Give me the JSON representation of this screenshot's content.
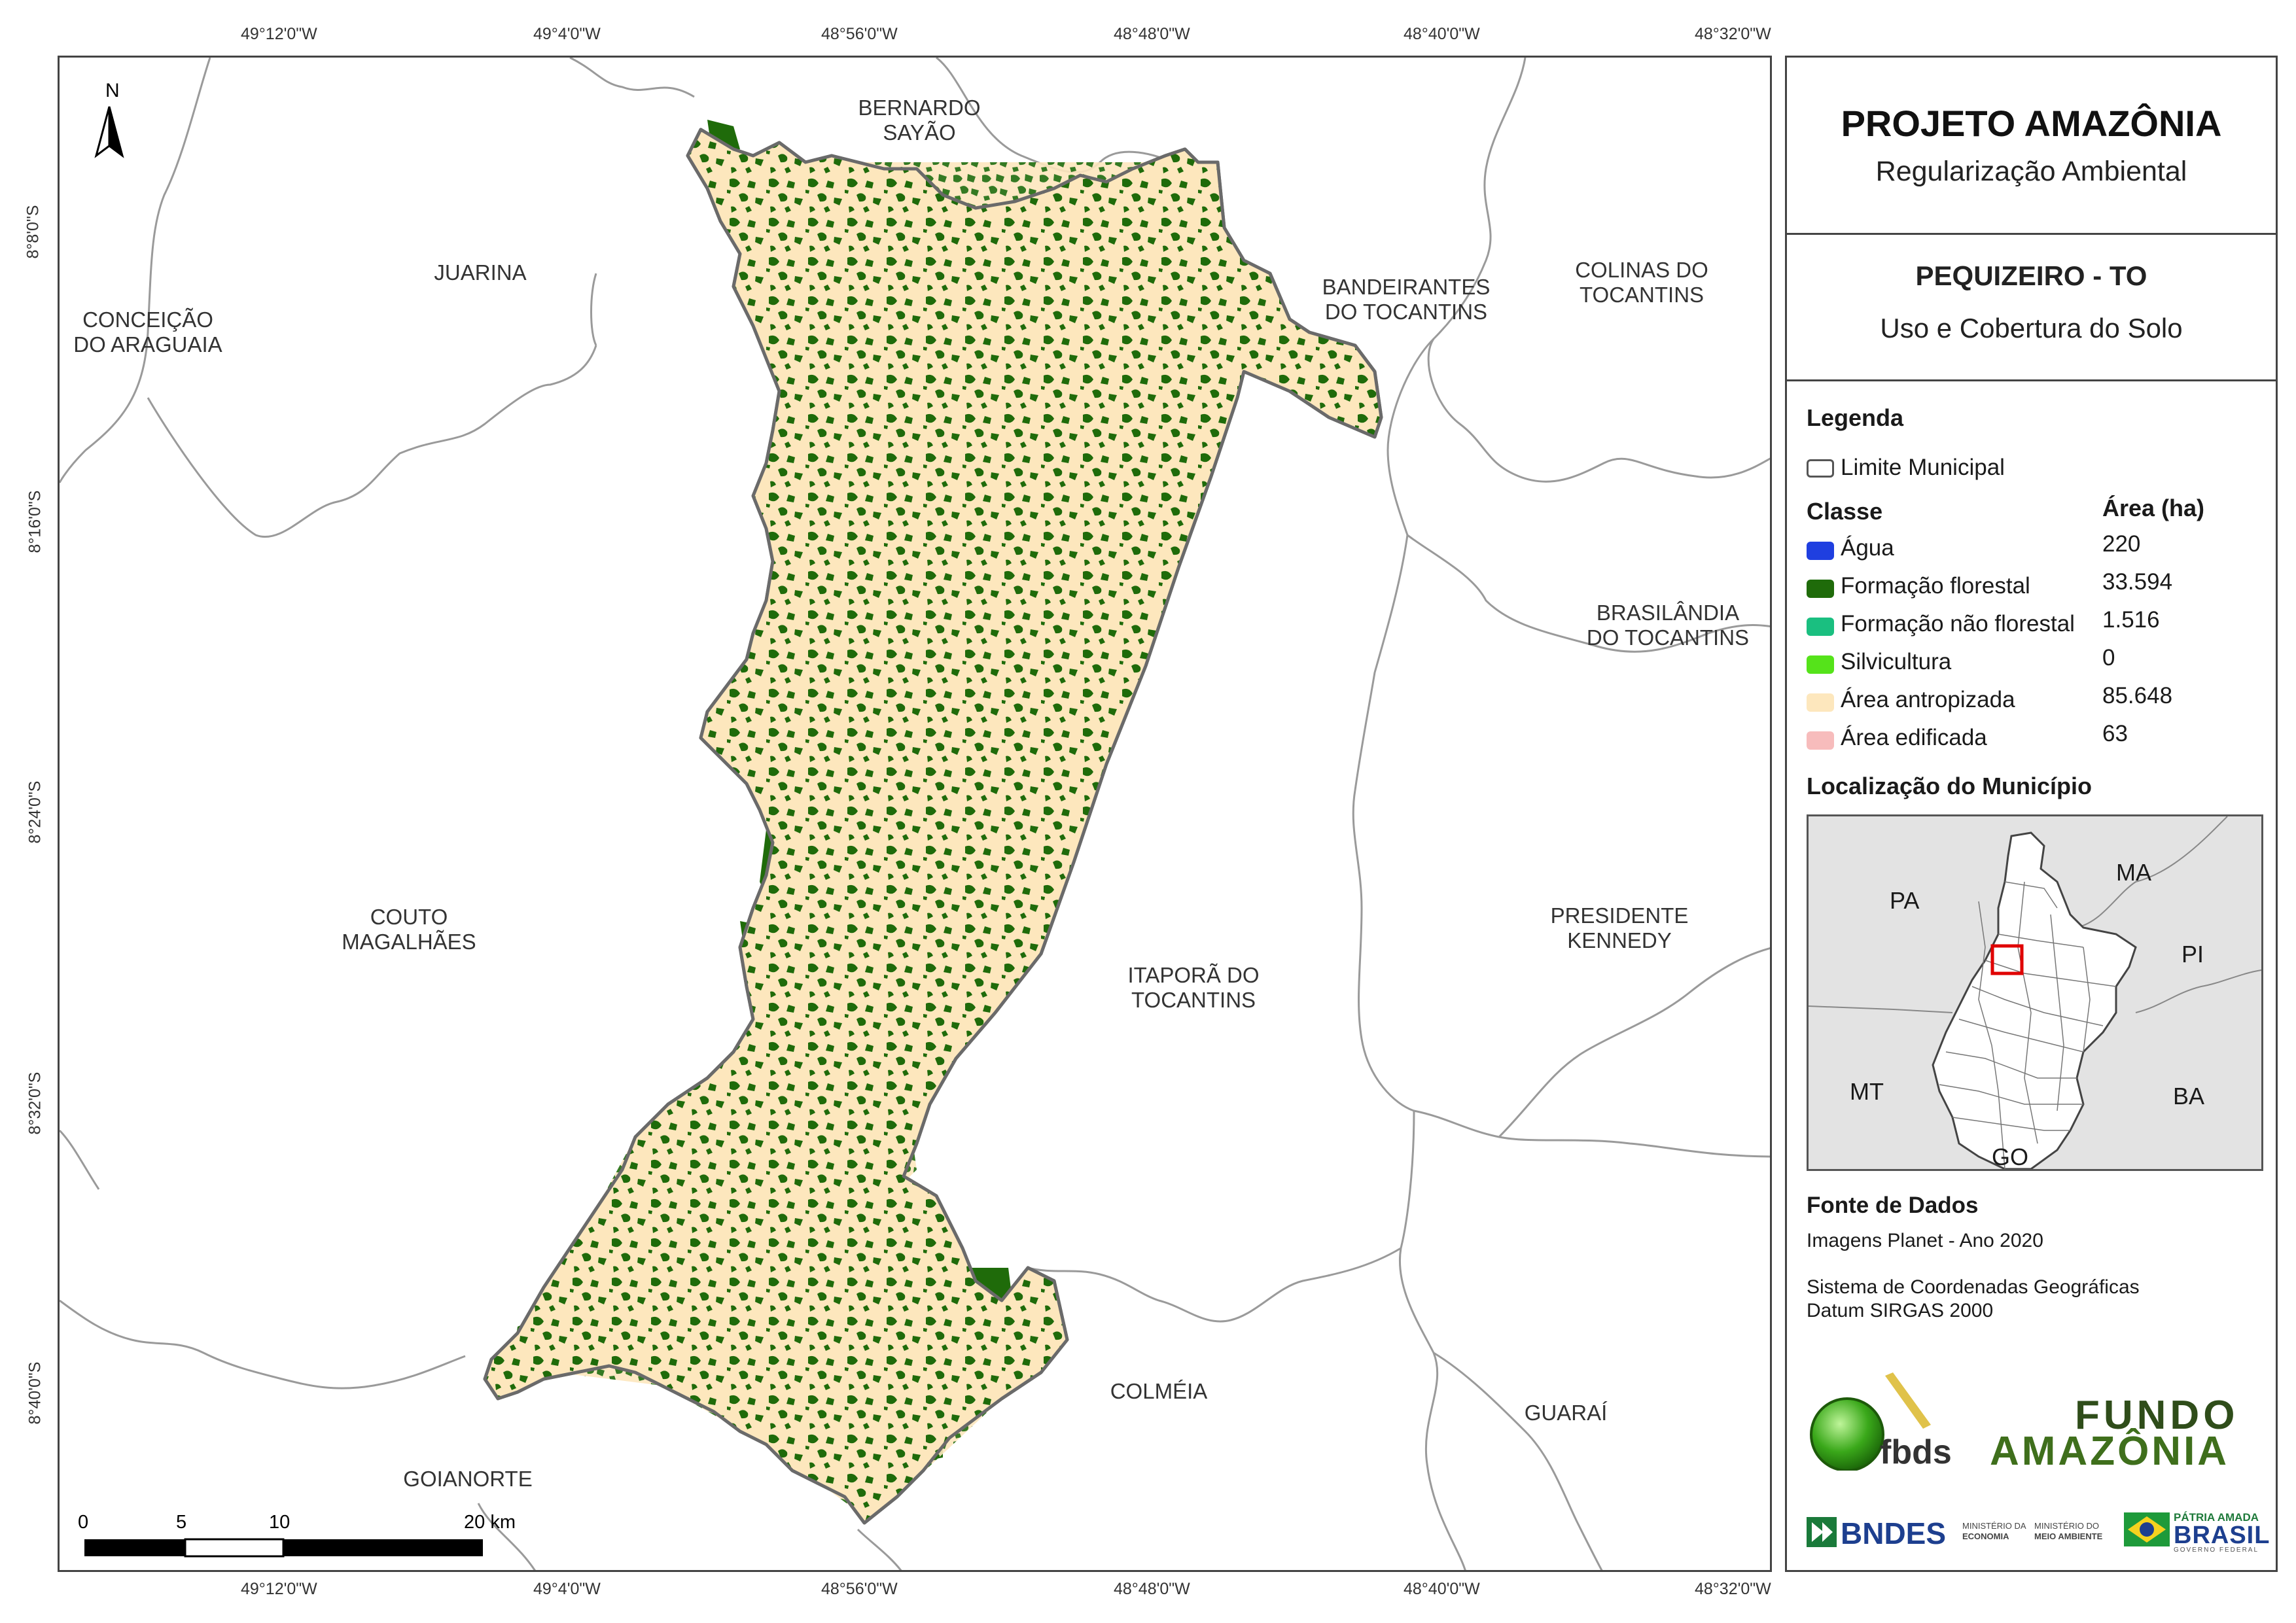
{
  "grid": {
    "top_labels": [
      "49°12'0\"W",
      "49°4'0\"W",
      "48°56'0\"W",
      "48°48'0\"W",
      "48°40'0\"W",
      "48°32'0\"W"
    ],
    "bottom_labels": [
      "49°12'0\"W",
      "49°4'0\"W",
      "48°56'0\"W",
      "48°48'0\"W",
      "48°40'0\"W",
      "48°32'0\"W"
    ],
    "left_labels": [
      "8°8'0\"S",
      "8°16'0\"S",
      "8°24'0\"S",
      "8°32'0\"S",
      "8°40'0\"S"
    ]
  },
  "map": {
    "north_arrow": "N",
    "municipalities": [
      {
        "name": "BERNARDO SAYÃO",
        "lines": [
          "BERNARDO",
          "SAYÃO"
        ]
      },
      {
        "name": "JUARINA",
        "lines": [
          "JUARINA"
        ]
      },
      {
        "name": "CONCEIÇÃO DO ARAGUAIA",
        "lines": [
          "CONCEIÇÃO",
          "DO ARAGUAIA"
        ]
      },
      {
        "name": "BANDEIRANTES DO TOCANTINS",
        "lines": [
          "BANDEIRANTES",
          "DO TOCANTINS"
        ]
      },
      {
        "name": "COLINAS DO TOCANTINS",
        "lines": [
          "COLINAS DO",
          "TOCANTINS"
        ]
      },
      {
        "name": "BRASILÂNDIA DO TOCANTINS",
        "lines": [
          "BRASILÂNDIA",
          "DO TOCANTINS"
        ]
      },
      {
        "name": "COUTO MAGALHÃES",
        "lines": [
          "COUTO",
          "MAGALHÃES"
        ]
      },
      {
        "name": "PRESIDENTE KENNEDY",
        "lines": [
          "PRESIDENTE",
          "KENNEDY"
        ]
      },
      {
        "name": "ITAPORÃ DO TOCANTINS",
        "lines": [
          "ITAPORÃ DO",
          "TOCANTINS"
        ]
      },
      {
        "name": "COLMÉIA",
        "lines": [
          "COLMÉIA"
        ]
      },
      {
        "name": "GUARAÍ",
        "lines": [
          "GUARAÍ"
        ]
      },
      {
        "name": "GOIANORTE",
        "lines": [
          "GOIANORTE"
        ]
      }
    ],
    "scale_bar": {
      "labels": [
        "0",
        "5",
        "10",
        "20 km"
      ]
    }
  },
  "legend": {
    "title": "PROJETO AMAZÔNIA",
    "subtitle": "Regularização Ambiental",
    "municipality": "PEQUIZEIRO - TO",
    "theme": "Uso e Cobertura do Solo",
    "legend_heading": "Legenda",
    "boundary_label": "Limite Municipal",
    "class_heading": "Classe",
    "area_heading": "Área (ha)",
    "classes": [
      {
        "label": "Água",
        "area": "220",
        "color": "#1f3fe0"
      },
      {
        "label": "Formação florestal",
        "area": "33.594",
        "color": "#1f6b0a"
      },
      {
        "label": "Formação não florestal",
        "area": "1.516",
        "color": "#1abf80"
      },
      {
        "label": "Silvicultura",
        "area": "0",
        "color": "#55e31a"
      },
      {
        "label": "Área antropizada",
        "area": "85.648",
        "color": "#fde7bd"
      },
      {
        "label": "Área edificada",
        "area": "63",
        "color": "#f7bcbc"
      }
    ],
    "location_heading": "Localização do Município",
    "location_states": [
      "PA",
      "MA",
      "PI",
      "MT",
      "BA",
      "GO"
    ],
    "source_heading": "Fonte de Dados",
    "source_lines": [
      "Imagens Planet - Ano 2020"
    ],
    "crs_lines": [
      "Sistema de Coordenadas Geográficas",
      "Datum SIRGAS 2000"
    ],
    "logos": {
      "fbds": "fbds",
      "fundo": [
        "FUNDO",
        "AMAZÔNIA"
      ],
      "bndes": "BNDES",
      "ministerio_economia": [
        "MINISTÉRIO DA",
        "ECONOMIA"
      ],
      "ministerio_meio_ambiente": [
        "MINISTÉRIO DO",
        "MEIO AMBIENTE"
      ],
      "patria": [
        "PÁTRIA AMADA",
        "BRASIL",
        "GOVERNO FEDERAL"
      ]
    }
  }
}
